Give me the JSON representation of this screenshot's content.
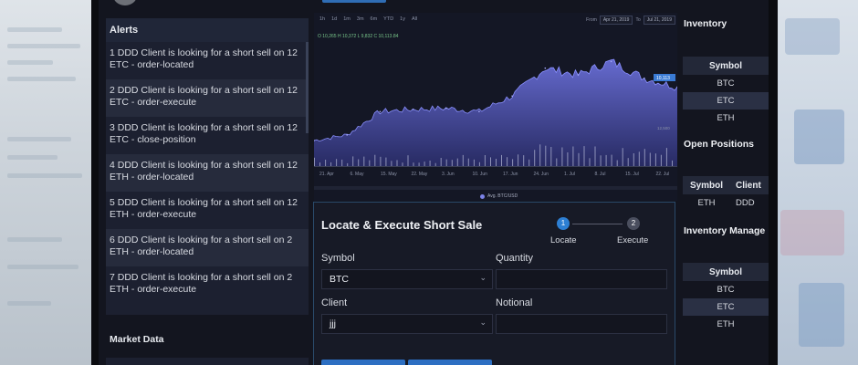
{
  "alerts": {
    "title": "Alerts",
    "items": [
      "1 DDD Client is looking for a short sell on 12 ETC - order-located",
      "2 DDD Client is looking for a short sell on 12 ETC - order-execute",
      "3 DDD Client is looking for a short sell on 12 ETC - close-position",
      "4 DDD Client is looking for a short sell on 12 ETH - order-located",
      "5 DDD Client is looking for a short sell on 12 ETH - order-execute",
      "6 DDD Client is looking for a short sell on 2 ETH - order-located",
      "7 DDD Client is looking for a short sell on 2 ETH - order-execute"
    ]
  },
  "market_data": {
    "title": "Market Data"
  },
  "chart": {
    "ranges": [
      "1h",
      "1d",
      "1m",
      "3m",
      "6m",
      "YTD",
      "1y",
      "All"
    ],
    "from_label": "From",
    "from_date": "Apr 21, 2019",
    "to_label": "To",
    "to_date": "Jul 21, 2019",
    "ohlc_text": "O 10,265 H 10,372 L 9,832 C 10,113.84",
    "legend": "Avg. BTC/USD",
    "x_ticks": [
      "21. Apr",
      "6. May",
      "15. May",
      "22. May",
      "3. Jun",
      "10. Jun",
      "17. Jun",
      "24. Jun",
      "1. Jul",
      "8. Jul",
      "15. Jul",
      "22. Jul"
    ],
    "price_label": "10,113",
    "vol_label": "12,500",
    "area_color": "#6a6fd8",
    "volume_color": "#b8bcd8"
  },
  "chart_data": {
    "type": "area",
    "title": "",
    "legend": [
      "Avg. BTC/USD"
    ],
    "x": [
      "21. Apr",
      "6. May",
      "15. May",
      "22. May",
      "3. Jun",
      "10. Jun",
      "17. Jun",
      "24. Jun",
      "1. Jul",
      "8. Jul",
      "15. Jul",
      "22. Jul"
    ],
    "series": [
      {
        "name": "Avg. BTC/USD",
        "values": [
          5300,
          5800,
          7900,
          8100,
          8200,
          7900,
          9300,
          11800,
          11200,
          12400,
          10900,
          10100
        ]
      }
    ]
  },
  "locate": {
    "title": "Locate & Execute Short Sale",
    "steps": [
      {
        "num": "1",
        "label": "Locate"
      },
      {
        "num": "2",
        "label": "Execute"
      }
    ],
    "symbol_label": "Symbol",
    "symbol_value": "BTC",
    "quantity_label": "Quantity",
    "quantity_value": "",
    "client_label": "Client",
    "client_value": "jjj",
    "notional_label": "Notional",
    "notional_value": ""
  },
  "inventory": {
    "title": "Inventory",
    "header": "Symbol",
    "rows": [
      "BTC",
      "ETC",
      "ETH"
    ]
  },
  "open_positions": {
    "title": "Open Positions",
    "headers": [
      "Symbol",
      "Client"
    ],
    "rows": [
      {
        "symbol": "ETH",
        "client": "DDD"
      }
    ]
  },
  "inventory_management": {
    "title": "Inventory Manage",
    "header": "Symbol",
    "rows": [
      "BTC",
      "ETC",
      "ETH"
    ]
  }
}
